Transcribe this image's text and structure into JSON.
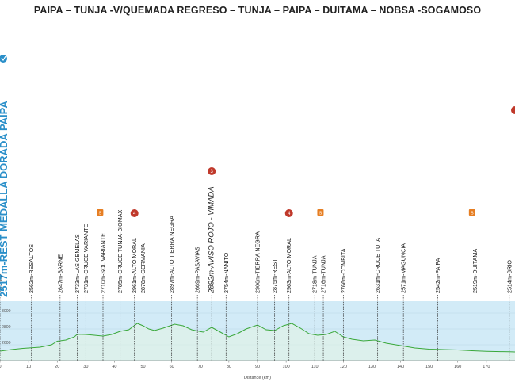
{
  "title": "PAIPA – TUNJA -V/QUEMADA REGRESO – TUNJA – PAIPA – DUITAMA – NOBSA -SOGAMOSO",
  "start_label": "2517m-REST MEDALLA DORADA PAIPA",
  "colors": {
    "profile": "#3aa83a",
    "band": "#d2ebf7",
    "start": "#2a8fc9",
    "category_marker": "#c0392b",
    "sprint_marker": "#e67e22"
  },
  "chart_data": {
    "type": "area",
    "title": "",
    "xlabel": "Distance (km)",
    "ylabel": "",
    "xlim": [
      0,
      180
    ],
    "ylim": [
      2400,
      3150
    ],
    "x_ticks": [
      0,
      10,
      20,
      30,
      40,
      50,
      60,
      70,
      80,
      90,
      100,
      110,
      120,
      130,
      140,
      150,
      160,
      170
    ],
    "y_ticks": [
      2600,
      2800,
      3000
    ],
    "profile": [
      {
        "x": 0,
        "y": 2520
      },
      {
        "x": 4,
        "y": 2540
      },
      {
        "x": 8,
        "y": 2555
      },
      {
        "x": 10,
        "y": 2560
      },
      {
        "x": 14,
        "y": 2570
      },
      {
        "x": 18,
        "y": 2600
      },
      {
        "x": 20,
        "y": 2645
      },
      {
        "x": 23,
        "y": 2660
      },
      {
        "x": 26,
        "y": 2700
      },
      {
        "x": 27,
        "y": 2733
      },
      {
        "x": 30,
        "y": 2730
      },
      {
        "x": 33,
        "y": 2720
      },
      {
        "x": 36,
        "y": 2710
      },
      {
        "x": 39,
        "y": 2730
      },
      {
        "x": 42,
        "y": 2770
      },
      {
        "x": 45,
        "y": 2790
      },
      {
        "x": 48,
        "y": 2870
      },
      {
        "x": 50,
        "y": 2840
      },
      {
        "x": 52,
        "y": 2800
      },
      {
        "x": 54,
        "y": 2780
      },
      {
        "x": 57,
        "y": 2810
      },
      {
        "x": 61,
        "y": 2860
      },
      {
        "x": 64,
        "y": 2840
      },
      {
        "x": 67,
        "y": 2790
      },
      {
        "x": 71,
        "y": 2760
      },
      {
        "x": 74,
        "y": 2820
      },
      {
        "x": 77,
        "y": 2760
      },
      {
        "x": 80,
        "y": 2700
      },
      {
        "x": 83,
        "y": 2740
      },
      {
        "x": 86,
        "y": 2800
      },
      {
        "x": 90,
        "y": 2850
      },
      {
        "x": 93,
        "y": 2790
      },
      {
        "x": 96,
        "y": 2780
      },
      {
        "x": 99,
        "y": 2840
      },
      {
        "x": 102,
        "y": 2870
      },
      {
        "x": 105,
        "y": 2810
      },
      {
        "x": 108,
        "y": 2740
      },
      {
        "x": 111,
        "y": 2720
      },
      {
        "x": 114,
        "y": 2730
      },
      {
        "x": 117,
        "y": 2770
      },
      {
        "x": 120,
        "y": 2700
      },
      {
        "x": 123,
        "y": 2670
      },
      {
        "x": 127,
        "y": 2650
      },
      {
        "x": 131,
        "y": 2660
      },
      {
        "x": 135,
        "y": 2620
      },
      {
        "x": 140,
        "y": 2590
      },
      {
        "x": 145,
        "y": 2560
      },
      {
        "x": 150,
        "y": 2545
      },
      {
        "x": 155,
        "y": 2540
      },
      {
        "x": 160,
        "y": 2535
      },
      {
        "x": 165,
        "y": 2525
      },
      {
        "x": 170,
        "y": 2518
      },
      {
        "x": 175,
        "y": 2514
      },
      {
        "x": 178,
        "y": 2512
      },
      {
        "x": 180,
        "y": 2510
      }
    ],
    "waypoints": [
      {
        "x": 0,
        "label": "2517m-"
      },
      {
        "x": 11,
        "label": "2562m-RESALTOS"
      },
      {
        "x": 21,
        "label": "2647m-BARNE"
      },
      {
        "x": 27,
        "label": "2733m-LAS GEMELAS"
      },
      {
        "x": 30,
        "label": "2731m-CRUCE VARIANTE"
      },
      {
        "x": 36,
        "label": "2710m-SOL VARIANTE"
      },
      {
        "x": 42,
        "label": "2785m-CRUCE TUNJA-BIOMAX"
      },
      {
        "x": 47,
        "label": "2961m-ALTO MORAL"
      },
      {
        "x": 50,
        "label": "2878m-GERMANIA"
      },
      {
        "x": 60,
        "label": "2897m-ALTO TIERRA NEGRA"
      },
      {
        "x": 69,
        "label": "2669m-PASAVIAS"
      },
      {
        "x": 74,
        "label": "2892m-AVISO ROJO - VIMADA",
        "emphasis": true
      },
      {
        "x": 79,
        "label": "2754m-NANITO"
      },
      {
        "x": 90,
        "label": "2906m-TIERRA NEGRA"
      },
      {
        "x": 96,
        "label": "2875m-REST"
      },
      {
        "x": 101,
        "label": "2963m-ALTO MORAL"
      },
      {
        "x": 110,
        "label": "2718m-TUNJA"
      },
      {
        "x": 113,
        "label": "2716m-TUNJA"
      },
      {
        "x": 120,
        "label": "2766m-COMBITA"
      },
      {
        "x": 132,
        "label": "2631m-CRUCE TUTA"
      },
      {
        "x": 141,
        "label": "2571m-MAGUNCIA"
      },
      {
        "x": 153,
        "label": "2542m-PAIPA"
      },
      {
        "x": 166,
        "label": "2519m-DUITAMA"
      },
      {
        "x": 178,
        "label": "2514m-BRIO"
      }
    ],
    "markers": [
      {
        "x": 47,
        "kind": "category",
        "label": "4"
      },
      {
        "x": 74,
        "kind": "category",
        "label": "3"
      },
      {
        "x": 101,
        "kind": "category",
        "label": "4"
      },
      {
        "x": 35,
        "kind": "sprint",
        "label": "S"
      },
      {
        "x": 112,
        "kind": "sprint",
        "label": "S"
      },
      {
        "x": 165,
        "kind": "sprint",
        "label": "S"
      }
    ]
  }
}
